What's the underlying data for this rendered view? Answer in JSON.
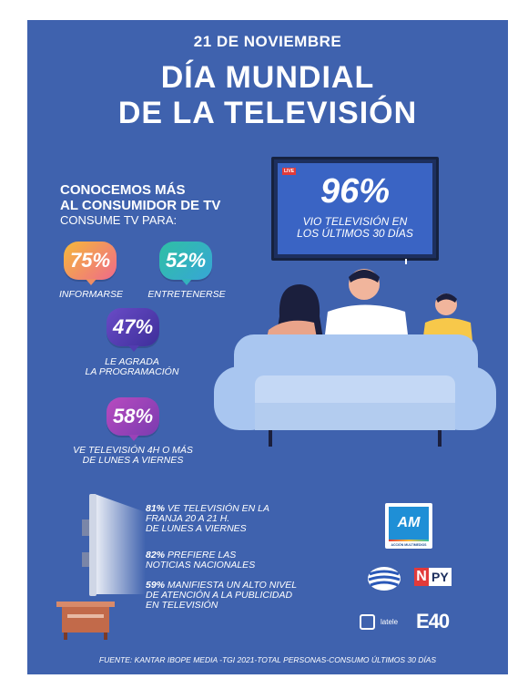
{
  "header": {
    "date": "21 DE NOVIEMBRE",
    "title_line1": "DÍA MUNDIAL",
    "title_line2": "DE LA TELEVISIÓN"
  },
  "tv_stat": {
    "live_badge": "LIVE",
    "percent": "96%",
    "caption_line1": "VIO TELEVISIÓN EN",
    "caption_line2": "LOS ÚLTIMOS 30 DÍAS"
  },
  "consumer": {
    "heading_line1": "CONOCEMOS MÁS",
    "heading_line2": "AL CONSUMIDOR DE  TV",
    "subheading": "CONSUME TV PARA:",
    "items": [
      {
        "percent": "75%",
        "label_line1": "INFORMARSE",
        "label_line2": ""
      },
      {
        "percent": "52%",
        "label_line1": "ENTRETENERSE",
        "label_line2": ""
      },
      {
        "percent": "47%",
        "label_line1": "LE AGRADA",
        "label_line2": "LA PROGRAMACIÓN"
      },
      {
        "percent": "58%",
        "label_line1": "VE TELEVISIÓN 4H O MÁS",
        "label_line2": "DE LUNES A VIERNES"
      }
    ]
  },
  "stats": [
    {
      "pct": "81%",
      "line1": " VE TELEVISIÓN EN LA",
      "line2": "FRANJA 20 A 21 H.",
      "line3": "DE LUNES A VIERNES"
    },
    {
      "pct": "82%",
      "line1": " PREFIERE LAS",
      "line2": "NOTICIAS NACIONALES",
      "line3": ""
    },
    {
      "pct": "59%",
      "line1": " MANIFIESTA UN ALTO NIVEL",
      "line2": "DE ATENCIÓN A LA PUBLICIDAD",
      "line3": "EN TELEVISIÓN"
    }
  ],
  "logos": {
    "am_mark": "AM",
    "am_caption": "ACCIÓN MULTIMEDIOS",
    "npy_n": "N",
    "npy_py": "PY",
    "latele": "latele",
    "e40": "E40"
  },
  "source": "FUENTE: KANTAR IBOPE MEDIA -TGI 2021-TOTAL PERSONAS-CONSUMO ÚLTIMOS 30 DÍAS",
  "colors": {
    "background": "#3F62AE",
    "couch": "#A9C6F0",
    "tv_screen": "#3A64C4"
  }
}
